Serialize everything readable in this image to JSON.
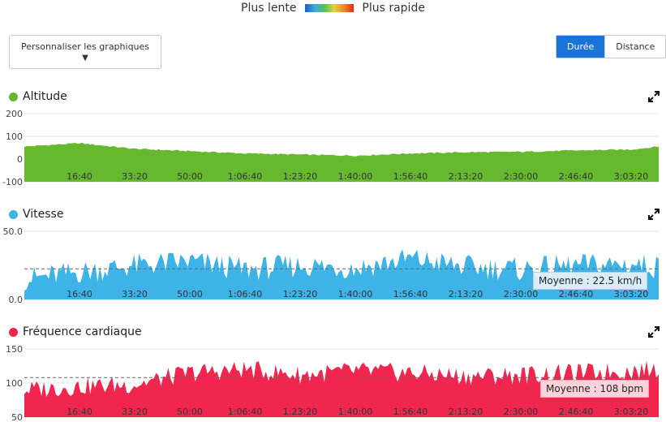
{
  "legend": {
    "slow": "Plus lente",
    "fast": "Plus rapide"
  },
  "customize": {
    "label": "Personnaliser les graphiques",
    "arrow": "▼"
  },
  "toggle": {
    "duration": "Durée",
    "distance": "Distance"
  },
  "icons": {
    "expand": "expand-icon"
  },
  "chart_data": [
    {
      "type": "area",
      "title": "Altitude",
      "color": "#66b82e",
      "y_ticks": [
        "200",
        "100",
        "0",
        "-100"
      ],
      "ylim": [
        -100,
        200
      ],
      "x_ticks": [
        "16:40",
        "33:20",
        "50:00",
        "1:06:40",
        "1:23:20",
        "1:40:00",
        "1:56:40",
        "2:13:20",
        "2:30:00",
        "2:46:40",
        "3:03:20"
      ],
      "duration_s": [
        0,
        1000,
        2000,
        3000,
        4000,
        5000,
        6000,
        7000,
        8000,
        9000,
        10000,
        11000,
        11500
      ],
      "values": [
        55,
        70,
        45,
        35,
        25,
        20,
        15,
        25,
        30,
        32,
        38,
        42,
        55
      ]
    },
    {
      "type": "area",
      "title": "Vitesse",
      "color": "#3db3e8",
      "y_ticks": [
        "50.0",
        "0.0"
      ],
      "ylim": [
        0,
        50
      ],
      "x_ticks": [
        "16:40",
        "33:20",
        "50:00",
        "1:06:40",
        "1:23:20",
        "1:40:00",
        "1:56:40",
        "2:13:20",
        "2:30:00",
        "2:46:40",
        "3:03:20"
      ],
      "duration_s": [
        0,
        1000,
        2000,
        3000,
        4000,
        5000,
        6000,
        7000,
        8000,
        9000,
        10000,
        11000,
        11500
      ],
      "values": [
        15,
        20,
        25,
        28,
        22,
        25,
        23,
        30,
        24,
        22,
        25,
        26,
        24
      ],
      "average": {
        "value": 22.5,
        "label": "Moyenne : 22.5 km/h"
      }
    },
    {
      "type": "area",
      "title": "Fréquence cardiaque",
      "color": "#f0264f",
      "y_ticks": [
        "150",
        "100",
        "50"
      ],
      "ylim": [
        50,
        150
      ],
      "x_ticks": [
        "16:40",
        "33:20",
        "50:00",
        "1:06:40",
        "1:23:20",
        "1:40:00",
        "1:56:40",
        "2:13:20",
        "2:30:00",
        "2:46:40",
        "3:03:20"
      ],
      "duration_s": [
        0,
        1000,
        2000,
        3000,
        4000,
        5000,
        6000,
        7000,
        8000,
        9000,
        10000,
        11000,
        11500
      ],
      "values": [
        90,
        95,
        98,
        115,
        120,
        112,
        118,
        115,
        110,
        112,
        115,
        118,
        120
      ],
      "average": {
        "value": 108,
        "label": "Moyenne : 108 bpm"
      }
    }
  ]
}
